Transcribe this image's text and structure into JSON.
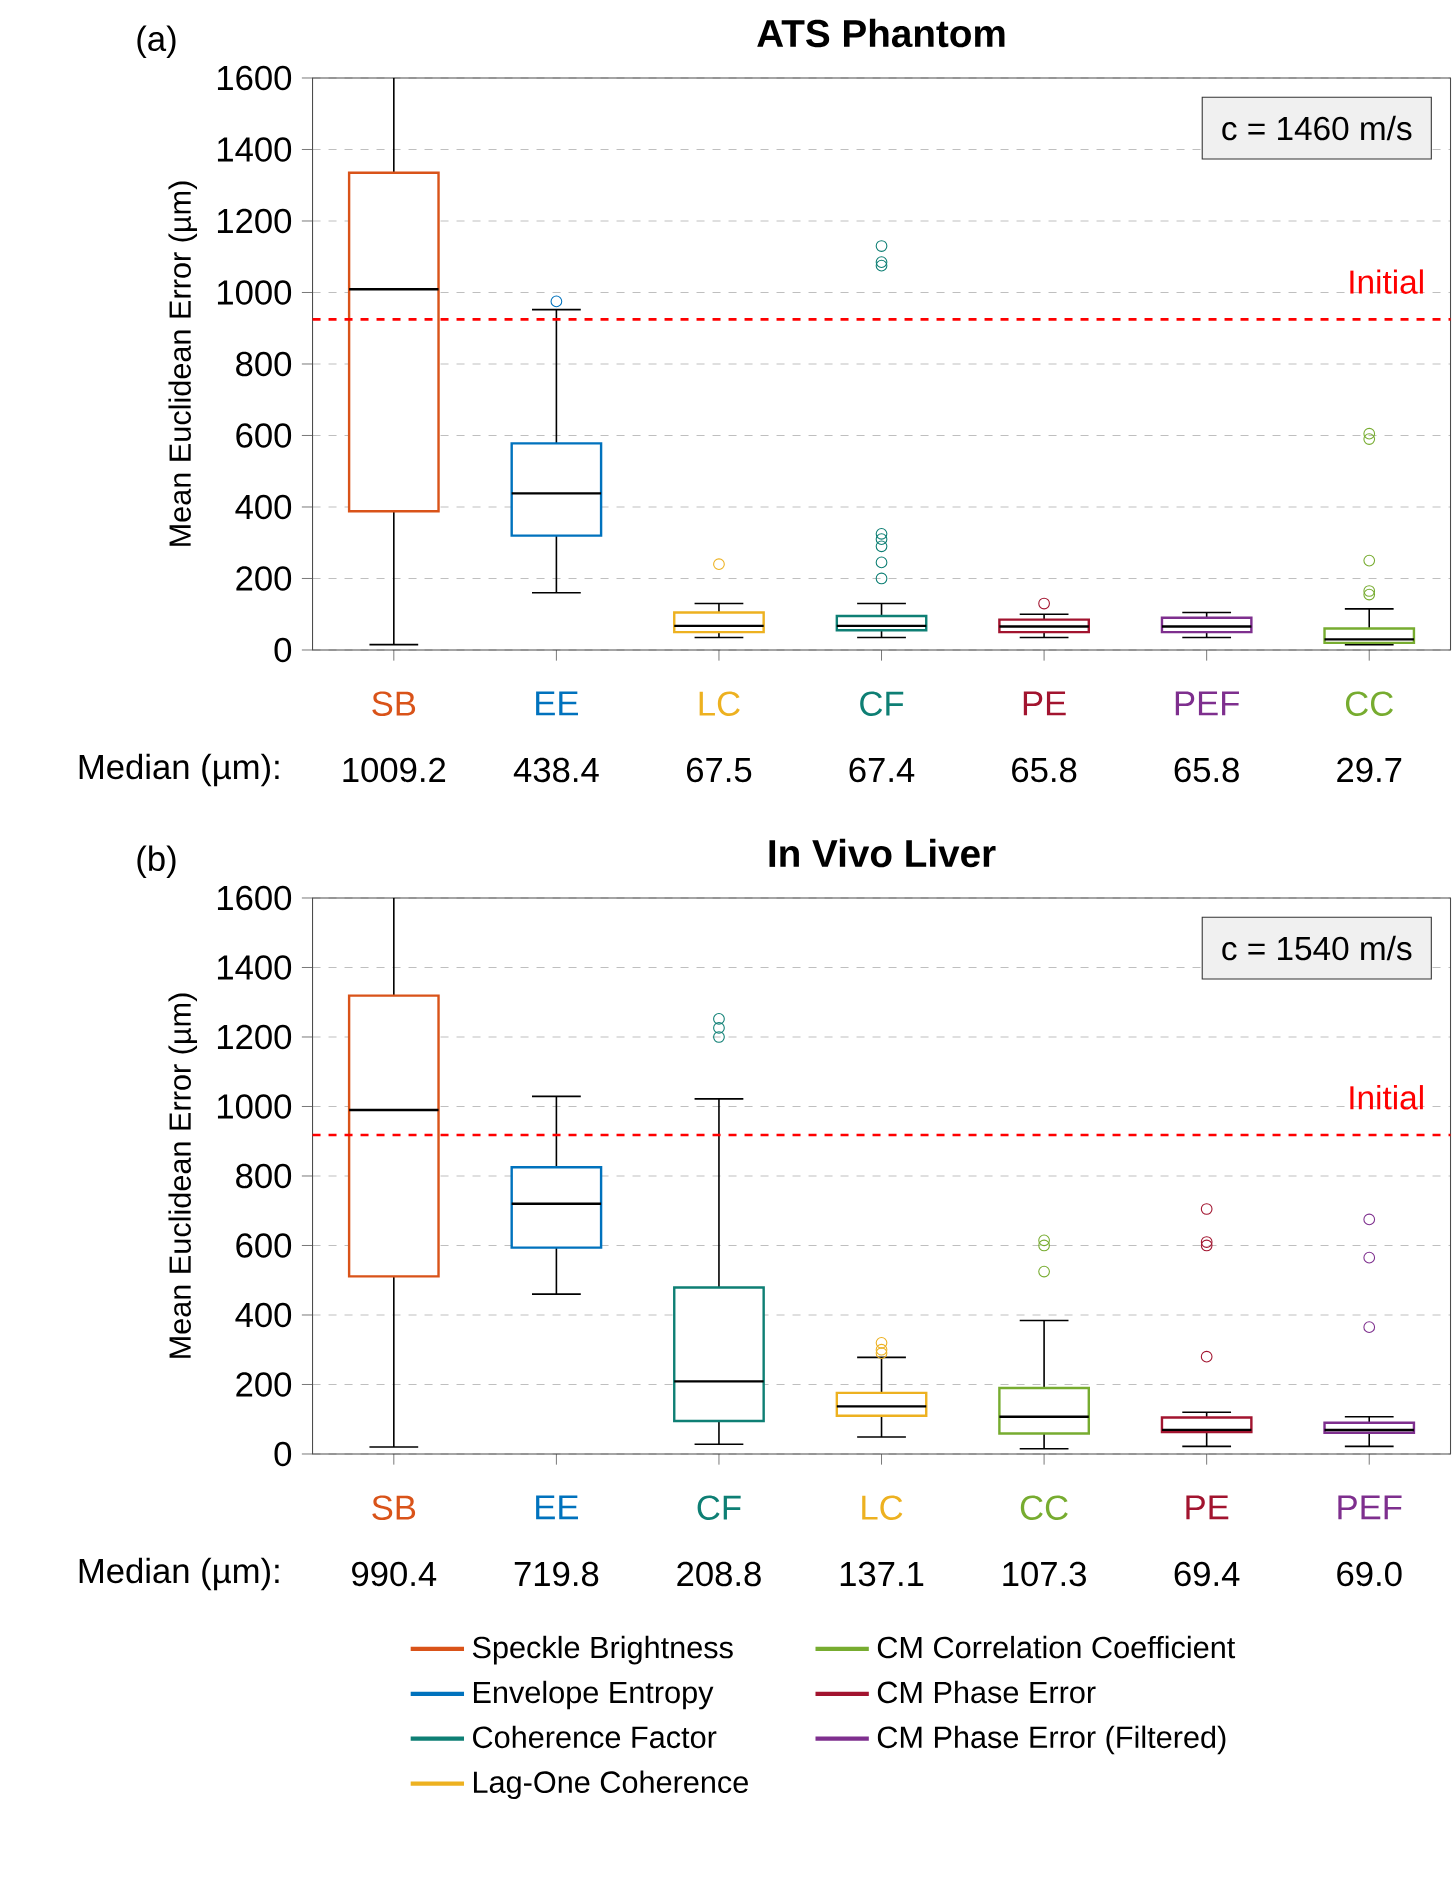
{
  "chart_data": [
    {
      "type": "box",
      "title": "ATS Phantom",
      "ylabel": "Mean Euclidean Error (µm)",
      "categories": [
        "SB",
        "EE",
        "LC",
        "CF",
        "PE",
        "PEF",
        "CC"
      ],
      "ylim": [
        0,
        1600
      ],
      "yticks": [
        0,
        200,
        400,
        600,
        800,
        1000,
        1200,
        1400,
        1600
      ],
      "grid": "y",
      "ref_lines": [
        {
          "axis": "y",
          "value": 925,
          "label": "Initial",
          "color": "#ff0000",
          "line_style": "dashed"
        }
      ],
      "annotations": [
        "(a)",
        "c = 1460 m/s",
        "Median (µm):"
      ],
      "series": [
        {
          "color": "#d95319",
          "value_labels": [
            "1009.2",
            null,
            null,
            null,
            null,
            null,
            null
          ],
          "boxes": [
            {
              "low": 15,
              "q1": 388,
              "median": 1009,
              "q3": 1335,
              "high": 1600
            },
            null,
            null,
            null,
            null,
            null,
            null
          ]
        },
        {
          "color": "#0072bd",
          "value_labels": [
            null,
            "438.4",
            null,
            null,
            null,
            null,
            null
          ],
          "boxes": [
            null,
            {
              "low": 160,
              "q1": 320,
              "median": 438,
              "q3": 578,
              "high": 952,
              "outliers": [
                975
              ]
            },
            null,
            null,
            null,
            null,
            null
          ]
        },
        {
          "color": "#edb120",
          "value_labels": [
            null,
            null,
            "67.5",
            null,
            null,
            null,
            null
          ],
          "boxes": [
            null,
            null,
            {
              "low": 35,
              "q1": 50,
              "median": 67.5,
              "q3": 105,
              "high": 130,
              "outliers": [
                240
              ]
            },
            null,
            null,
            null,
            null
          ]
        },
        {
          "color": "#0e7f74",
          "value_labels": [
            null,
            null,
            null,
            "67.4",
            null,
            null,
            null
          ],
          "boxes": [
            null,
            null,
            null,
            {
              "low": 35,
              "q1": 55,
              "median": 67.4,
              "q3": 95,
              "high": 130,
              "outliers": [
                200,
                245,
                290,
                310,
                325,
                1075,
                1085,
                1130
              ]
            },
            null,
            null,
            null
          ]
        },
        {
          "color": "#a2142f",
          "value_labels": [
            null,
            null,
            null,
            null,
            "65.8",
            null,
            null
          ],
          "boxes": [
            null,
            null,
            null,
            null,
            {
              "low": 35,
              "q1": 50,
              "median": 65.8,
              "q3": 85,
              "high": 100,
              "outliers": [
                130
              ]
            },
            null,
            null
          ]
        },
        {
          "color": "#7e2f8e",
          "value_labels": [
            null,
            null,
            null,
            null,
            null,
            "65.8",
            null
          ],
          "boxes": [
            null,
            null,
            null,
            null,
            null,
            {
              "low": 35,
              "q1": 50,
              "median": 65.8,
              "q3": 90,
              "high": 105
            },
            null
          ]
        },
        {
          "color": "#77ac30",
          "value_labels": [
            null,
            null,
            null,
            null,
            null,
            null,
            "29.7"
          ],
          "boxes": [
            null,
            null,
            null,
            null,
            null,
            null,
            {
              "low": 15,
              "q1": 20,
              "median": 29.7,
              "q3": 60,
              "high": 115,
              "outliers": [
                155,
                165,
                250,
                590,
                605
              ]
            }
          ]
        }
      ]
    },
    {
      "type": "box",
      "title": "In Vivo Liver",
      "ylabel": "Mean Euclidean Error (µm)",
      "categories": [
        "SB",
        "EE",
        "CF",
        "LC",
        "CC",
        "PE",
        "PEF"
      ],
      "ylim": [
        0,
        1600
      ],
      "yticks": [
        0,
        200,
        400,
        600,
        800,
        1000,
        1200,
        1400,
        1600
      ],
      "grid": "y",
      "legend": "bottom",
      "ref_lines": [
        {
          "axis": "y",
          "value": 918,
          "label": "Initial",
          "color": "#ff0000",
          "line_style": "dashed"
        }
      ],
      "annotations": [
        "(b)",
        "c = 1540 m/s",
        "Median (µm):"
      ],
      "series": [
        {
          "name": "Speckle Brightness",
          "color": "#d95319",
          "value_labels": [
            "990.4",
            null,
            null,
            null,
            null,
            null,
            null
          ],
          "boxes": [
            {
              "low": 20,
              "q1": 511,
              "median": 990,
              "q3": 1319,
              "high": 1600
            },
            null,
            null,
            null,
            null,
            null,
            null
          ]
        },
        {
          "name": "Envelope Entropy",
          "color": "#0072bd",
          "value_labels": [
            null,
            "719.8",
            null,
            null,
            null,
            null,
            null
          ],
          "boxes": [
            null,
            {
              "low": 460,
              "q1": 594,
              "median": 720,
              "q3": 825,
              "high": 1029
            },
            null,
            null,
            null,
            null,
            null
          ]
        },
        {
          "name": "Coherence Factor",
          "color": "#0e7f74",
          "value_labels": [
            null,
            null,
            "208.8",
            null,
            null,
            null,
            null
          ],
          "boxes": [
            null,
            null,
            {
              "low": 28,
              "q1": 95,
              "median": 209,
              "q3": 479,
              "high": 1022,
              "outliers": [
                1200,
                1226,
                1252
              ]
            },
            null,
            null,
            null,
            null
          ]
        },
        {
          "name": "Lag-One Coherence",
          "color": "#edb120",
          "value_labels": [
            null,
            null,
            null,
            "137.1",
            null,
            null,
            null
          ],
          "boxes": [
            null,
            null,
            null,
            {
              "low": 49,
              "q1": 110,
              "median": 137,
              "q3": 176,
              "high": 278,
              "outliers": [
                290,
                300,
                320
              ]
            },
            null,
            null,
            null
          ]
        },
        {
          "name": "CM Correlation Coefficient",
          "color": "#77ac30",
          "value_labels": [
            null,
            null,
            null,
            null,
            "107.3",
            null,
            null
          ],
          "boxes": [
            null,
            null,
            null,
            null,
            {
              "low": 15,
              "q1": 59,
              "median": 107,
              "q3": 190,
              "high": 384,
              "outliers": [
                525,
                600,
                615
              ]
            },
            null,
            null
          ]
        },
        {
          "name": "CM Phase Error",
          "color": "#a2142f",
          "value_labels": [
            null,
            null,
            null,
            null,
            null,
            "69.4",
            null
          ],
          "boxes": [
            null,
            null,
            null,
            null,
            null,
            {
              "low": 22,
              "q1": 63,
              "median": 69.4,
              "q3": 105,
              "high": 120,
              "outliers": [
                280,
                600,
                610,
                705
              ]
            },
            null
          ]
        },
        {
          "name": "CM Phase Error (Filtered)",
          "color": "#7e2f8e",
          "value_labels": [
            null,
            null,
            null,
            null,
            null,
            null,
            "69.0"
          ],
          "boxes": [
            null,
            null,
            null,
            null,
            null,
            null,
            {
              "low": 22,
              "q1": 61,
              "median": 69,
              "q3": 90,
              "high": 107,
              "outliers": [
                365,
                565,
                675
              ]
            }
          ]
        }
      ]
    }
  ]
}
